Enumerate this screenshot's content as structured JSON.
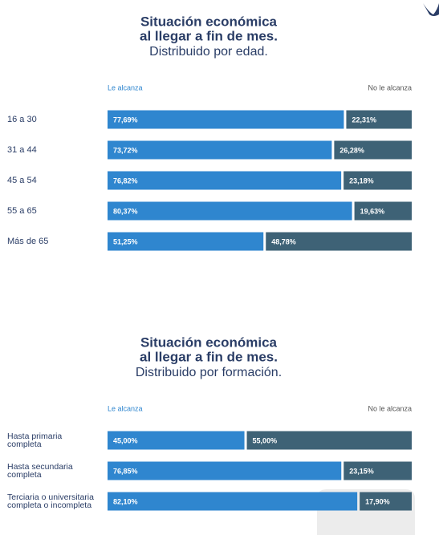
{
  "chart_data": [
    {
      "type": "stacked-bar-horizontal",
      "title": [
        "Situación económica",
        "al llegar a fin de mes."
      ],
      "subtitle": "Distribuido por edad.",
      "categories": [
        "16 a 30",
        "31 a 44",
        "45 a 54",
        "55 a 65",
        "Más de 65"
      ],
      "series": [
        {
          "name": "Le alcanza",
          "color": "#2f86cf",
          "values": [
            77.69,
            73.72,
            76.82,
            80.37,
            51.25
          ],
          "value_labels": [
            "77,69%",
            "73,72%",
            "76,82%",
            "80,37%",
            "51,25%"
          ]
        },
        {
          "name": "No le alcanza",
          "color": "#3e6276",
          "values": [
            22.31,
            26.28,
            23.18,
            19.63,
            48.78
          ],
          "value_labels": [
            "22,31%",
            "26,28%",
            "23,18%",
            "19,63%",
            "48,78%"
          ]
        }
      ],
      "xlim": [
        0,
        100
      ]
    },
    {
      "type": "stacked-bar-horizontal",
      "title": [
        "Situación económica",
        "al llegar a fin de mes."
      ],
      "subtitle": "Distribuido por formación.",
      "categories": [
        [
          "Hasta primaria",
          "completa"
        ],
        [
          "Hasta secundaria",
          "completa"
        ],
        [
          "Terciaria o universitaria",
          "completa o incompleta"
        ]
      ],
      "series": [
        {
          "name": "Le alcanza",
          "color": "#2f86cf",
          "values": [
            45.0,
            76.85,
            82.1
          ],
          "value_labels": [
            "45,00%",
            "76,85%",
            "82,10%"
          ]
        },
        {
          "name": "No le alcanza",
          "color": "#3e6276",
          "values": [
            55.0,
            23.15,
            17.9
          ],
          "value_labels": [
            "55,00%",
            "23,15%",
            "17,90%"
          ]
        }
      ],
      "xlim": [
        0,
        100
      ]
    }
  ]
}
